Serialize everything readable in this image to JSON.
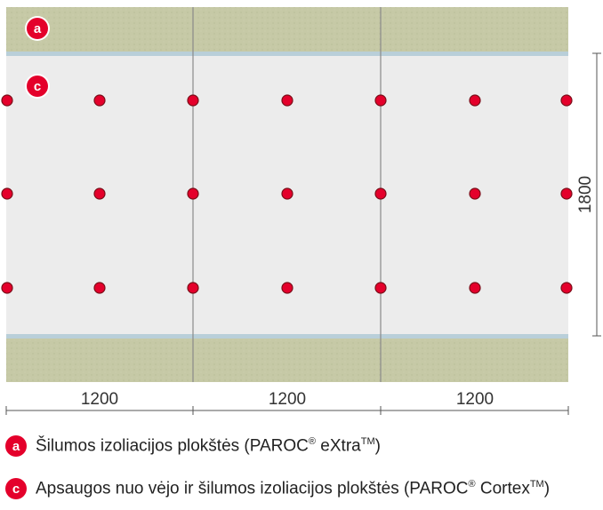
{
  "diagram": {
    "panel_width_label": "1200",
    "panel_height_label": "1800",
    "markers": {
      "a": "a",
      "c": "c"
    },
    "colors": {
      "wool": "#c8caa8",
      "panel": "#ececec",
      "joint": "#b9cfd9",
      "fastener": "#e4002b",
      "accent": "#e4002b"
    }
  },
  "legend": [
    {
      "badge": "a",
      "text": "Šilumos izoliacijos plokštės (PAROC",
      "reg": "®",
      "product": " eXtra",
      "tm": "TM",
      "close": ")"
    },
    {
      "badge": "c",
      "text": "Apsaugos nuo vėjo ir šilumos izoliacijos plokštės (PAROC",
      "reg": "®",
      "product": " Cortex",
      "tm": "TM",
      "close": ")"
    }
  ]
}
